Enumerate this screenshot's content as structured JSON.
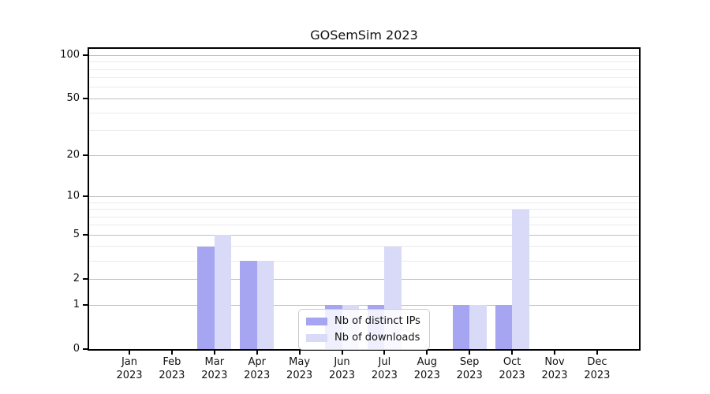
{
  "title": "GOSemSim 2023",
  "legend": {
    "items": [
      {
        "label": "Nb of distinct IPs",
        "color": "#a5a5f2"
      },
      {
        "label": "Nb of downloads",
        "color": "#d9d9f8"
      }
    ]
  },
  "chart_data": {
    "type": "bar",
    "title": "GOSemSim 2023",
    "categories": [
      "Jan 2023",
      "Feb 2023",
      "Mar 2023",
      "Apr 2023",
      "May 2023",
      "Jun 2023",
      "Jul 2023",
      "Aug 2023",
      "Sep 2023",
      "Oct 2023",
      "Nov 2023",
      "Dec 2023"
    ],
    "series": [
      {
        "name": "Nb of distinct IPs",
        "color": "#a5a5f2",
        "values": [
          0,
          0,
          4,
          3,
          0,
          1,
          1,
          0,
          1,
          1,
          0,
          0
        ]
      },
      {
        "name": "Nb of downloads",
        "color": "#d9d9f8",
        "values": [
          0,
          0,
          5,
          3,
          0,
          1,
          4,
          0,
          1,
          8,
          0,
          0
        ]
      }
    ],
    "xlabel": "",
    "ylabel": "",
    "yscale": "log1p",
    "ylim": [
      0,
      110
    ],
    "yticks_major": [
      0,
      1,
      2,
      5,
      10,
      20,
      50,
      100
    ],
    "yticks_minor": [
      3,
      4,
      6,
      7,
      8,
      9,
      30,
      40,
      60,
      70,
      80,
      90
    ],
    "grid": "horizontal",
    "legend_position": "lower-center-inside"
  }
}
